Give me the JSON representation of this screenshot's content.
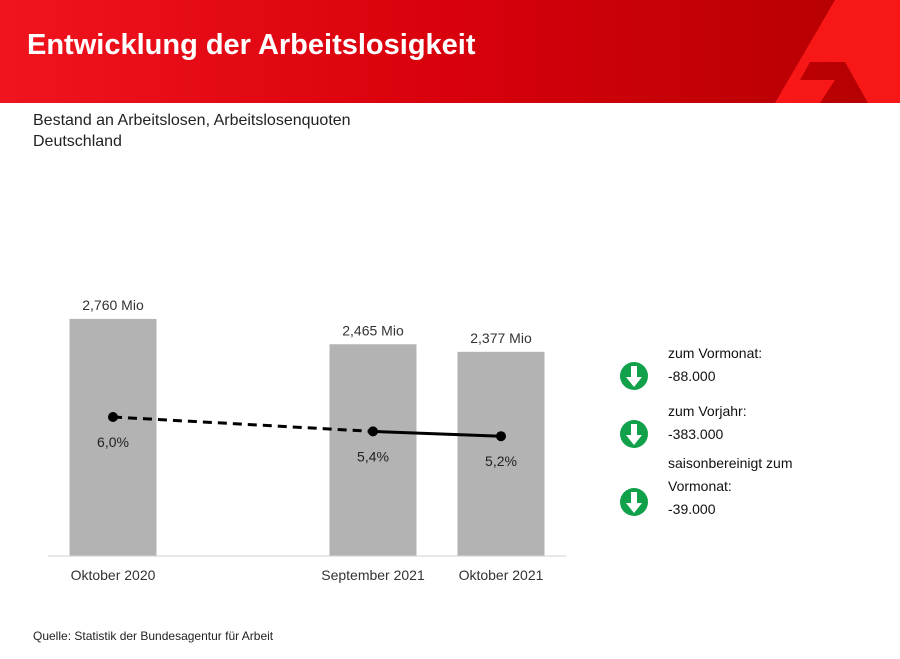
{
  "header": {
    "title": "Entwicklung der Arbeitslosigkeit"
  },
  "subtitle": {
    "line1": "Bestand an Arbeitslosen, Arbeitslosenquoten",
    "line2": "Deutschland"
  },
  "chart_data": {
    "type": "bar",
    "categories": [
      "Oktober 2020",
      "September 2021",
      "Oktober 2021"
    ],
    "series": [
      {
        "name": "Arbeitslose (Mio)",
        "type": "bar",
        "values": [
          2.76,
          2.465,
          2.377
        ],
        "labels": [
          "2,760 Mio",
          "2,465 Mio",
          "2,377 Mio"
        ],
        "color": "#b3b3b3"
      },
      {
        "name": "Arbeitslosenquote (%)",
        "type": "line",
        "values": [
          6.0,
          5.4,
          5.2
        ],
        "labels": [
          "6,0%",
          "5,4%",
          "5,2%"
        ],
        "color": "#000000"
      }
    ]
  },
  "legend": [
    {
      "label": "zum Vormonat:",
      "value": "-88.000",
      "icon": "arrow-down-icon"
    },
    {
      "label": "zum Vorjahr:",
      "value": "-383.000",
      "icon": "arrow-down-icon"
    },
    {
      "label": "saisonbereinigt zum",
      "label2": "Vormonat:",
      "value": "-39.000",
      "icon": "arrow-down-icon"
    }
  ],
  "colors": {
    "accent": "#e30613",
    "down": "#12a14b"
  },
  "source": "Quelle: Statistik der Bundesagentur für Arbeit"
}
